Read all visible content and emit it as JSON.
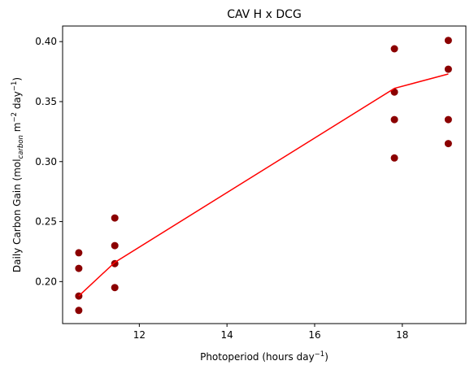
{
  "chart_data": {
    "type": "scatter",
    "title": "CAV H x DCG",
    "xlabel": "Photoperiod (hours day",
    "xlabel_sup": "−1",
    "xlabel_end": ")",
    "ylabel": {
      "prefix": "Daily Carbon Gain (mol",
      "sub": "carbon",
      "mid1": " m",
      "sup1": "−2",
      "mid2": " day",
      "sup2": "−1",
      "suffix": ")"
    },
    "xlim": [
      10.25,
      19.45
    ],
    "ylim": [
      0.165,
      0.413
    ],
    "xticks": [
      12,
      14,
      16,
      18
    ],
    "xtick_labels": [
      "12",
      "14",
      "16",
      "18"
    ],
    "yticks": [
      0.2,
      0.25,
      0.3,
      0.35,
      0.4
    ],
    "ytick_labels": [
      "0.20",
      "0.25",
      "0.30",
      "0.35",
      "0.40"
    ],
    "grid": false,
    "series": [
      {
        "kind": "points",
        "color": "#8b0000",
        "x": [
          10.62,
          10.62,
          10.62,
          10.62,
          11.44,
          11.44,
          11.44,
          11.44,
          17.82,
          17.82,
          17.82,
          17.82,
          19.05,
          19.05,
          19.05,
          19.05
        ],
        "y": [
          0.224,
          0.211,
          0.188,
          0.176,
          0.253,
          0.23,
          0.215,
          0.195,
          0.394,
          0.358,
          0.335,
          0.303,
          0.401,
          0.377,
          0.335,
          0.315
        ]
      },
      {
        "kind": "line",
        "color": "#ff0000",
        "x": [
          10.62,
          11.44,
          17.82,
          19.05
        ],
        "y": [
          0.188,
          0.216,
          0.361,
          0.373
        ]
      }
    ]
  }
}
